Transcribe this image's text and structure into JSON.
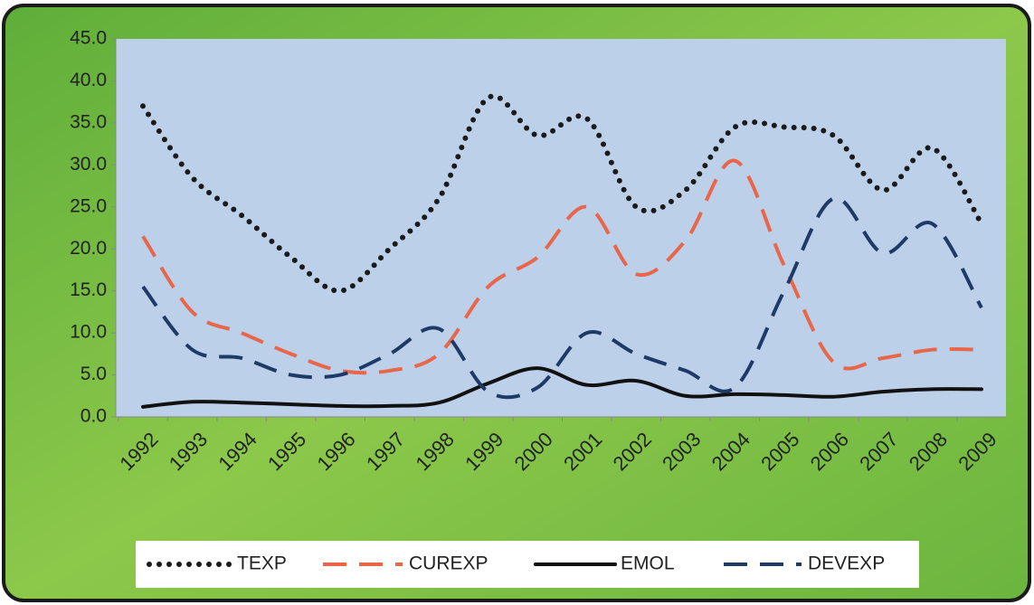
{
  "chart_data": {
    "type": "line",
    "categories": [
      "1992",
      "1993",
      "1994",
      "1995",
      "1996",
      "1997",
      "1998",
      "1999",
      "2000",
      "2001",
      "2002",
      "2003",
      "2004",
      "2005",
      "2006",
      "2007",
      "2008",
      "2009"
    ],
    "series": [
      {
        "name": "TEXP",
        "color": "#1a1a1a",
        "style": "dotted",
        "values": [
          37,
          28.5,
          24,
          19,
          15,
          20,
          26,
          38,
          33.5,
          35.5,
          25,
          27,
          34.5,
          34.5,
          33.5,
          27,
          32,
          23
        ]
      },
      {
        "name": "CUREXP",
        "color": "#e8664a",
        "style": "dashed",
        "values": [
          21.5,
          12.5,
          10,
          7.5,
          5.5,
          5.5,
          7.5,
          15.5,
          19,
          25,
          17,
          21,
          30.5,
          18,
          6.5,
          7,
          8,
          8
        ]
      },
      {
        "name": "EMOL",
        "color": "#111111",
        "style": "solid",
        "values": [
          1.2,
          1.8,
          1.7,
          1.5,
          1.3,
          1.3,
          1.7,
          4.0,
          5.8,
          3.8,
          4.3,
          2.5,
          2.7,
          2.6,
          2.4,
          3.0,
          3.3,
          3.3
        ]
      },
      {
        "name": "DEVEXP",
        "color": "#1f3a66",
        "style": "dashed",
        "values": [
          15.5,
          8,
          7,
          5,
          5,
          7.5,
          10.5,
          3,
          3.5,
          10,
          7.5,
          5.5,
          3.5,
          15,
          26,
          19.5,
          23,
          13
        ]
      }
    ],
    "ylim": [
      0,
      45
    ],
    "yticks": [
      {
        "value": 0,
        "label": "0.0"
      },
      {
        "value": 5,
        "label": "5.0"
      },
      {
        "value": 10,
        "label": "10.0"
      },
      {
        "value": 15,
        "label": "15.0"
      },
      {
        "value": 20,
        "label": "20.0"
      },
      {
        "value": 25,
        "label": "25.0"
      },
      {
        "value": 30,
        "label": "30.0"
      },
      {
        "value": 35,
        "label": "35.0"
      },
      {
        "value": 40,
        "label": "40.0"
      },
      {
        "value": 45,
        "label": "45.0"
      }
    ],
    "legend": "bottom"
  }
}
